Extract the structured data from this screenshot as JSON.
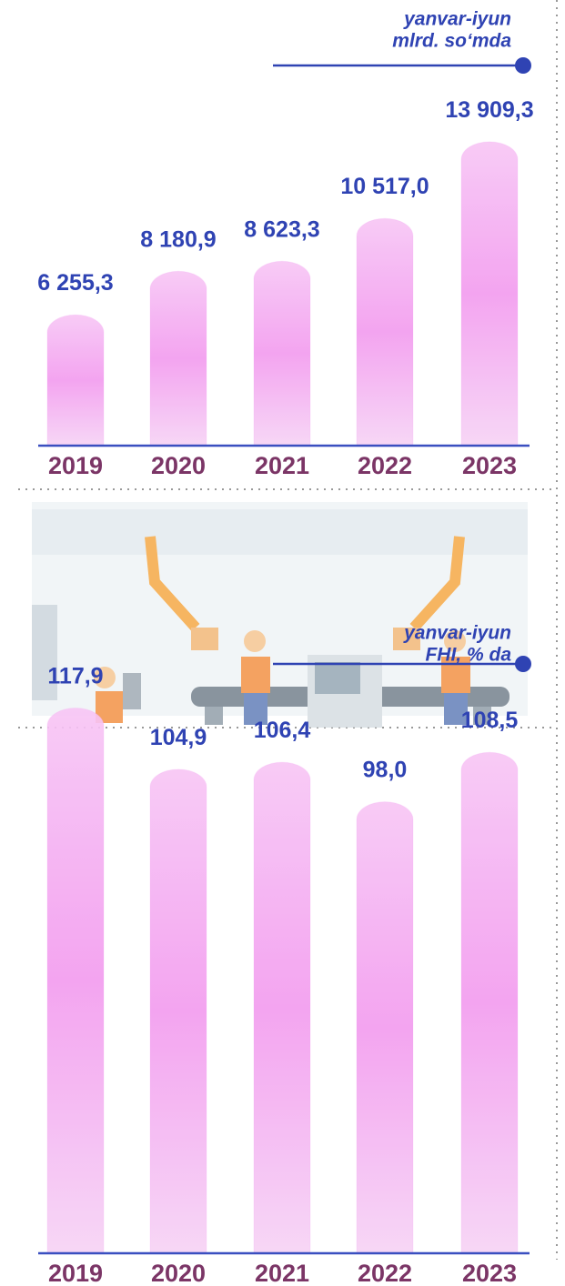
{
  "chart_data": [
    {
      "type": "bar",
      "subtitle": [
        "yanvar-iyun",
        "mlrd. so‘mda"
      ],
      "categories": [
        "2019",
        "2020",
        "2021",
        "2022",
        "2023"
      ],
      "values": [
        6255.3,
        8180.9,
        8623.3,
        10517.0,
        13909.3
      ],
      "value_labels": [
        "6 255,3",
        "8 180,9",
        "8 623,3",
        "10 517,0",
        "13 909,3"
      ],
      "ylim": [
        0,
        14000
      ],
      "color": "#f29bef"
    },
    {
      "type": "bar",
      "subtitle": [
        "yanvar-iyun",
        "FHI, % da"
      ],
      "categories": [
        "2019",
        "2020",
        "2021",
        "2022",
        "2023"
      ],
      "values": [
        117.9,
        104.9,
        106.4,
        98.0,
        108.5
      ],
      "value_labels": [
        "117,9",
        "104,9",
        "106,4",
        "98,0",
        "108,5"
      ],
      "ylim": [
        0,
        120
      ],
      "color": "#f29bef"
    }
  ]
}
